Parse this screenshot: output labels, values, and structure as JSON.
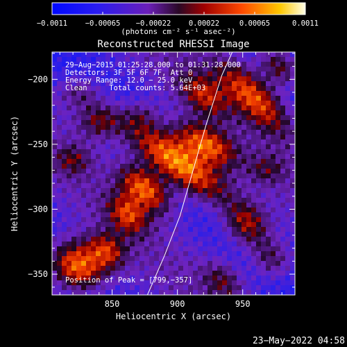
{
  "chart_data": {
    "type": "heatmap",
    "title": "Reconstructed RHESSI Image",
    "xlabel": "Heliocentric X (arcsec)",
    "ylabel": "Heliocentric Y (arcsec)",
    "xlim": [
      804,
      990
    ],
    "ylim": [
      -366,
      -179
    ],
    "x_ticks": [
      850,
      900,
      950
    ],
    "y_ticks": [
      -200,
      -250,
      -300,
      -350
    ],
    "x_tick_labels": [
      "850",
      "900",
      "950"
    ],
    "y_tick_labels": [
      "−200",
      "−250",
      "−300",
      "−350"
    ],
    "colorbar": {
      "min": -0.0011,
      "max": 0.0011,
      "tick_labels": [
        "−0.0011",
        "−0.00065",
        "−0.00022",
        "0.00022",
        "0.00065",
        "0.0011"
      ],
      "unit_label": "(photons cm⁻² s⁻¹ asec⁻²)"
    },
    "annotations": [
      "29−Aug−2015 01:25:28.000 to 01:31:28.000",
      "Detectors: 3F 5F 6F 7F, Att 0",
      "Energy Range: 12.0 − 25.0 keV",
      "Clean     Total counts: 5.64E+03"
    ],
    "peak_label": "Position of Peak = [799,−357]",
    "peak_position": [
      799,
      -357
    ],
    "limb_curve": [
      [
        877,
        -366
      ],
      [
        890,
        -336
      ],
      [
        902,
        -305
      ],
      [
        912,
        -270
      ],
      [
        922,
        -235
      ],
      [
        934,
        -197
      ],
      [
        942,
        -179
      ]
    ],
    "sources": [
      {
        "x": 900,
        "y": -264,
        "sx": 34,
        "sy": 11,
        "rot": -36,
        "amp": 1.0
      },
      {
        "x": 875,
        "y": -284,
        "sx": 16,
        "sy": 9,
        "rot": -40,
        "amp": 0.75
      },
      {
        "x": 922,
        "y": -250,
        "sx": 18,
        "sy": 9,
        "rot": -30,
        "amp": 0.7
      },
      {
        "x": 823,
        "y": -344,
        "sx": 16,
        "sy": 13,
        "rot": -30,
        "amp": 0.9
      },
      {
        "x": 862,
        "y": -304,
        "sx": 12,
        "sy": 9,
        "rot": -45,
        "amp": 0.55
      },
      {
        "x": 846,
        "y": -332,
        "sx": 11,
        "sy": 9,
        "rot": -40,
        "amp": 0.5
      },
      {
        "x": 958,
        "y": -213,
        "sx": 26,
        "sy": 10,
        "rot": -45,
        "amp": 0.68
      },
      {
        "x": 978,
        "y": -190,
        "sx": 13,
        "sy": 9,
        "rot": -40,
        "amp": 0.55
      },
      {
        "x": 920,
        "y": -212,
        "sx": 15,
        "sy": 9,
        "rot": -40,
        "amp": 0.45
      },
      {
        "x": 840,
        "y": -232,
        "sx": 12,
        "sy": 10,
        "rot": 0,
        "amp": 0.45
      },
      {
        "x": 825,
        "y": -210,
        "sx": 12,
        "sy": 9,
        "rot": 0,
        "amp": 0.35
      },
      {
        "x": 953,
        "y": -312,
        "sx": 13,
        "sy": 11,
        "rot": -40,
        "amp": 0.58
      },
      {
        "x": 972,
        "y": -338,
        "sx": 12,
        "sy": 10,
        "rot": -40,
        "amp": 0.45
      },
      {
        "x": 935,
        "y": -355,
        "sx": 12,
        "sy": 9,
        "rot": -40,
        "amp": 0.35
      },
      {
        "x": 820,
        "y": -262,
        "sx": 10,
        "sy": 8,
        "rot": 0,
        "amp": 0.3
      },
      {
        "x": 872,
        "y": -228,
        "sx": 10,
        "sy": 8,
        "rot": 0,
        "amp": 0.25
      },
      {
        "x": 968,
        "y": -270,
        "sx": 10,
        "sy": 8,
        "rot": 0,
        "amp": 0.25
      }
    ],
    "grid": false,
    "legend": "none"
  },
  "footer": {
    "date_stamp": "23−May−2022 04:58"
  }
}
